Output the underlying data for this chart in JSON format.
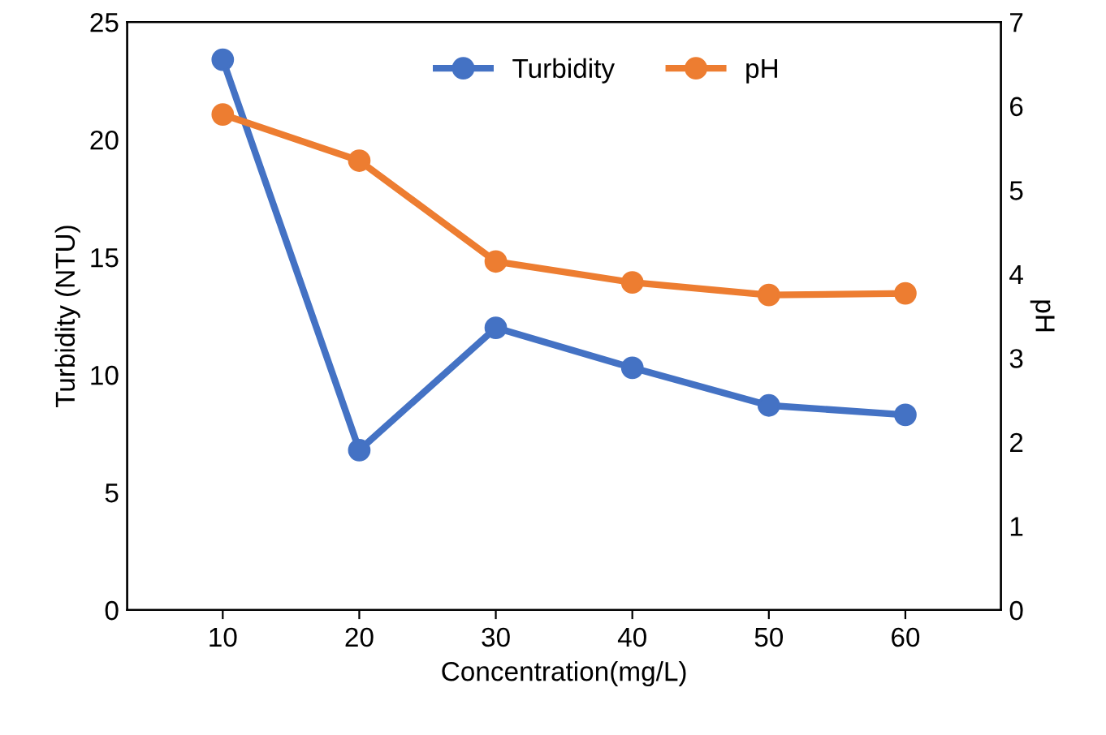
{
  "chart_data": {
    "type": "line",
    "xlabel": "Concentration(mg/L)",
    "ylabel": "Turbidity (NTU)",
    "y2label": "pH",
    "categories": [
      "10",
      "20",
      "30",
      "40",
      "50",
      "60"
    ],
    "series": [
      {
        "name": "Turbidity",
        "color": "#4472c4",
        "values": [
          23.4,
          6.8,
          12.0,
          10.3,
          8.7,
          8.3
        ]
      },
      {
        "name": "pH",
        "color": "#ed7d31",
        "axis": "y2",
        "values": [
          5.9,
          5.35,
          4.15,
          3.9,
          3.75,
          3.77
        ]
      }
    ],
    "ylim": [
      0,
      25
    ],
    "yticks": [
      0,
      5,
      10,
      15,
      20,
      25
    ],
    "y2lim": [
      0,
      7
    ],
    "y2ticks": [
      0,
      1,
      2,
      3,
      4,
      5,
      6,
      7
    ],
    "marker": "circle",
    "line_style": "solid",
    "legend": "top",
    "grid": false
  }
}
